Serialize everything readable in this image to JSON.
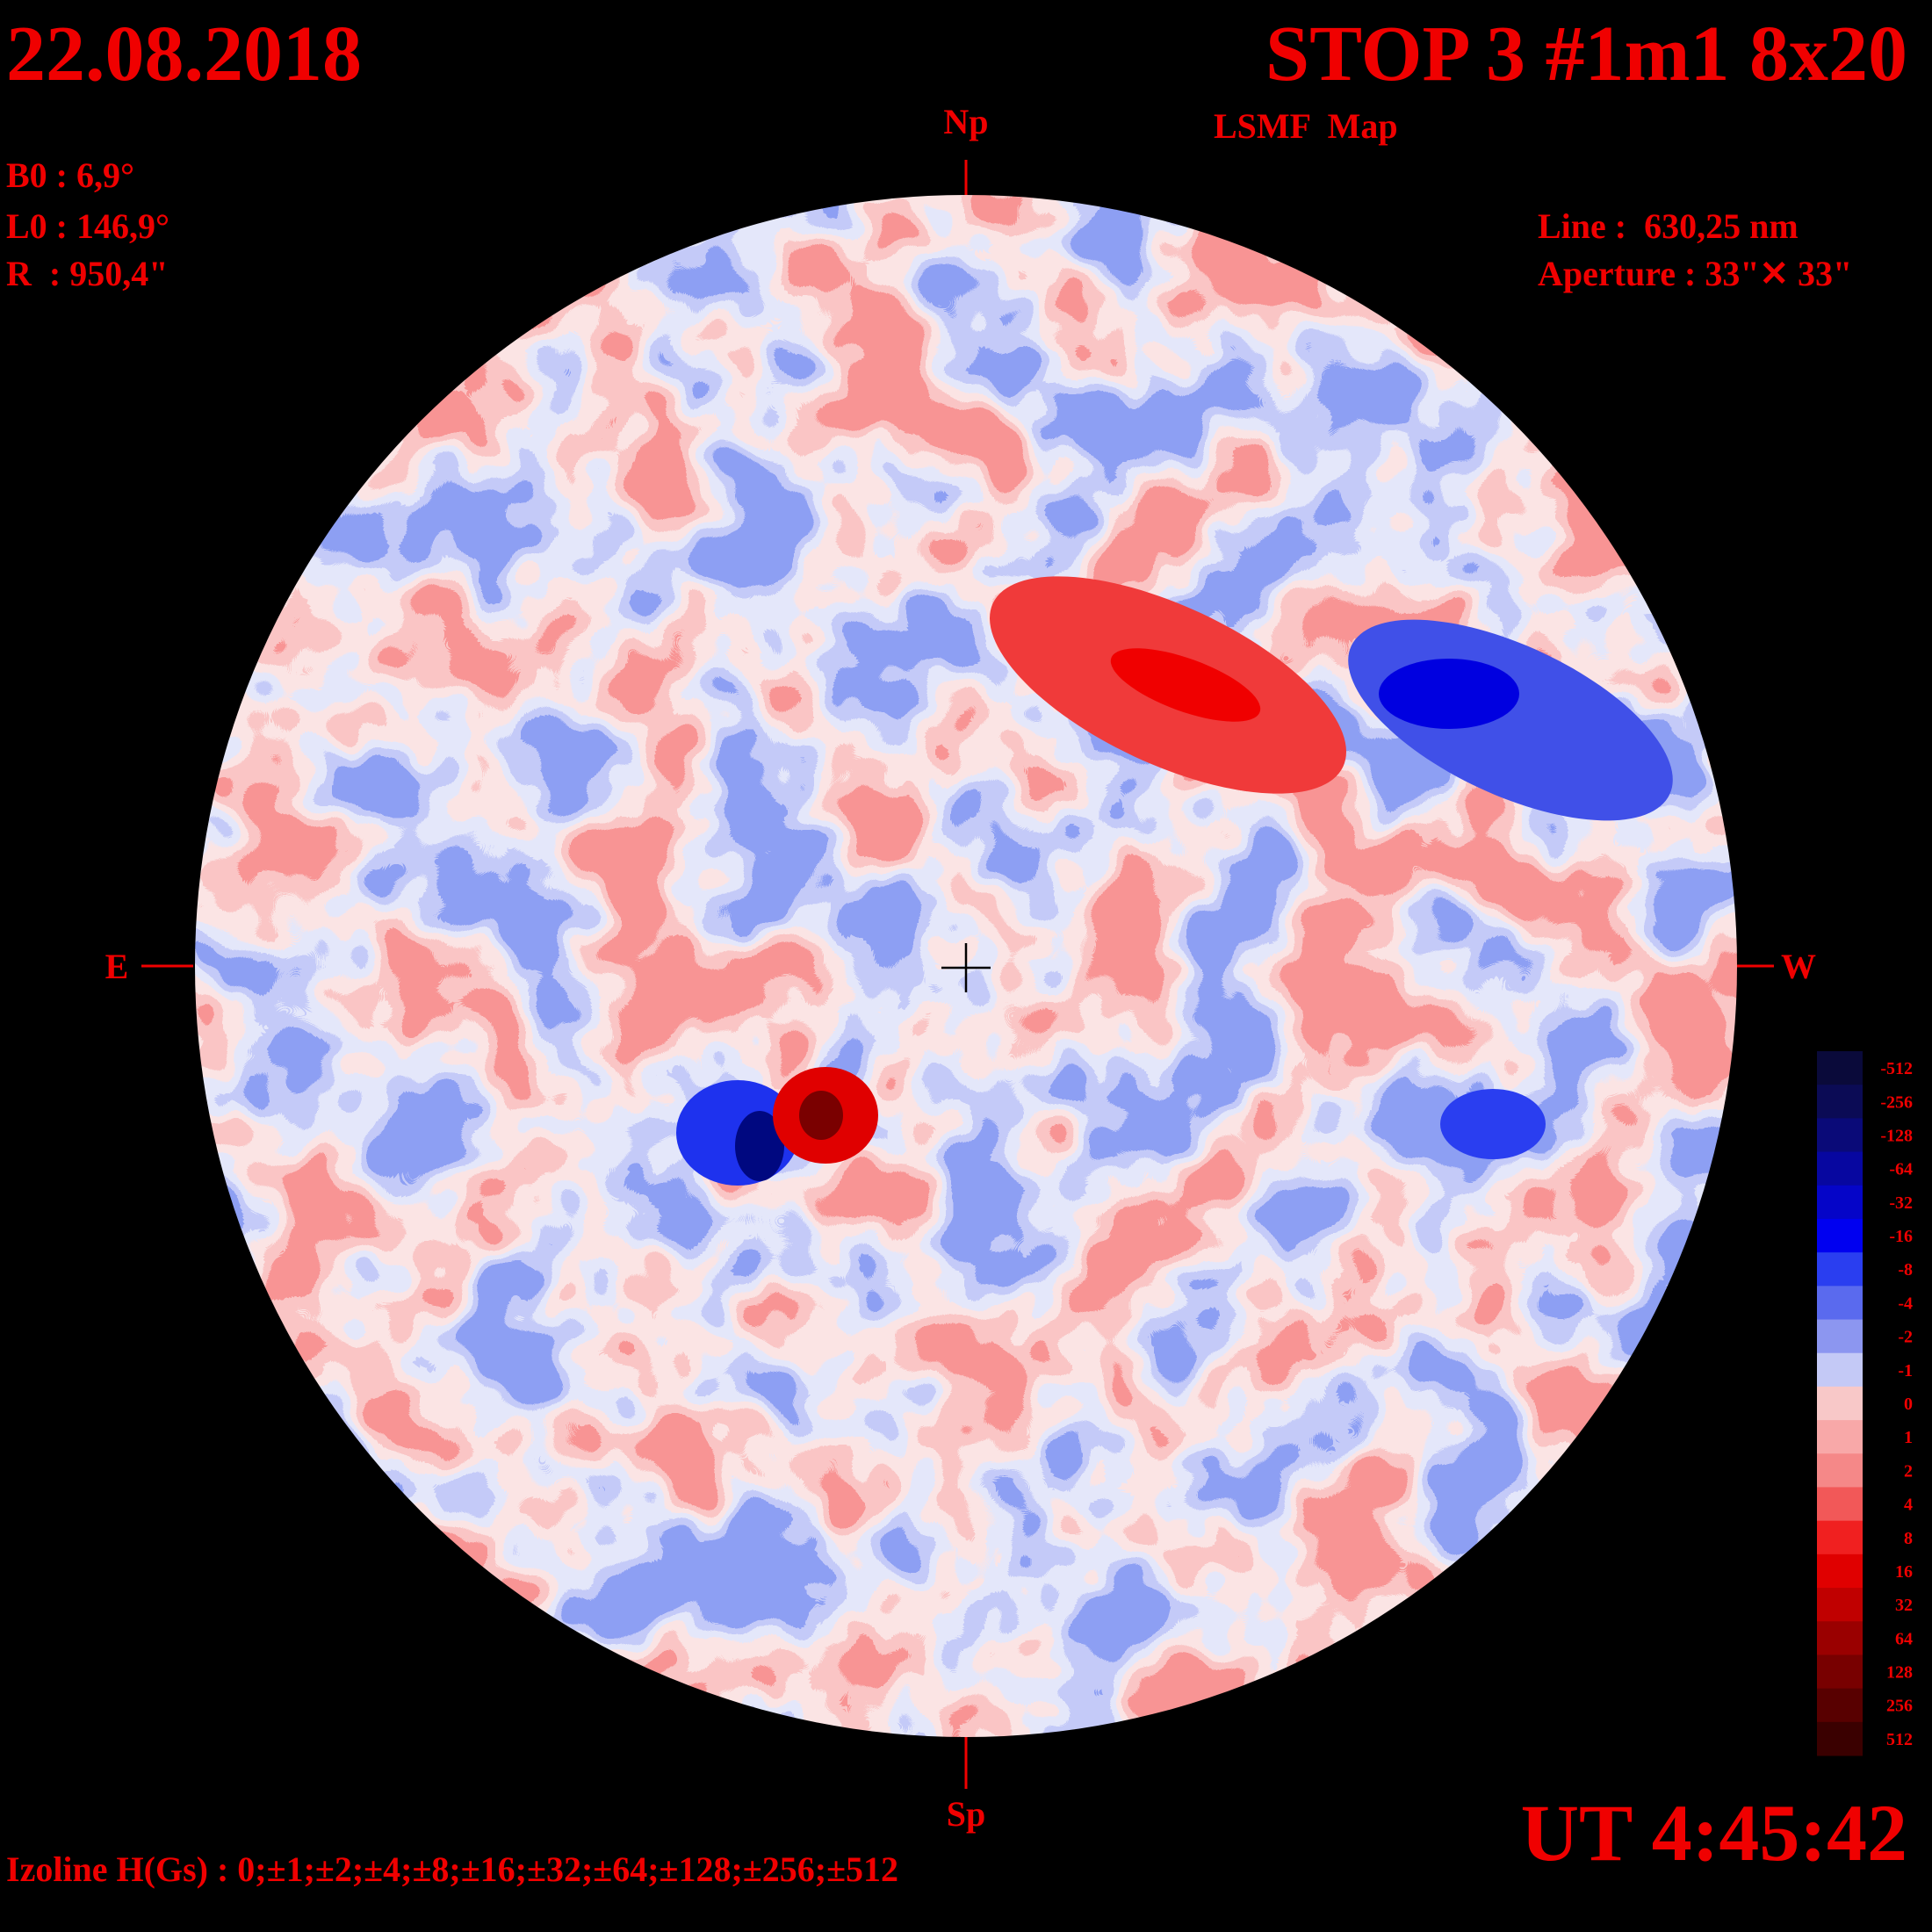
{
  "header": {
    "date": "22.08.2018",
    "title": "STOP 3 #1m1 8x20",
    "subtitle": "LSMF  Map",
    "params": [
      "B0 : 6,9°",
      "L0 : 146,9°",
      "R  : 950,4\""
    ],
    "line": "Line :  630,25 nm",
    "aperture": "Aperture : 33\"✕ 33\""
  },
  "compass": {
    "north": "Np",
    "south": "Sp",
    "east": "E",
    "west": "W"
  },
  "legend": [
    {
      "label": "-512",
      "color": "#0a0a3a"
    },
    {
      "label": "-256",
      "color": "#0b0b55"
    },
    {
      "label": "-128",
      "color": "#0a0a78"
    },
    {
      "label": "-64",
      "color": "#0707a0"
    },
    {
      "label": "-32",
      "color": "#0505c8"
    },
    {
      "label": "-16",
      "color": "#0000f0"
    },
    {
      "label": "-8",
      "color": "#2a3ef0"
    },
    {
      "label": "-4",
      "color": "#5a6aee"
    },
    {
      "label": "-2",
      "color": "#8c96f0"
    },
    {
      "label": "-1",
      "color": "#c4c9f6"
    },
    {
      "label": "0",
      "color": "#f8c8c8"
    },
    {
      "label": "1",
      "color": "#f8a8a8"
    },
    {
      "label": "2",
      "color": "#f58888"
    },
    {
      "label": "4",
      "color": "#f25858"
    },
    {
      "label": "8",
      "color": "#f02020"
    },
    {
      "label": "16",
      "color": "#e00000"
    },
    {
      "label": "32",
      "color": "#c00000"
    },
    {
      "label": "64",
      "color": "#9a0000"
    },
    {
      "label": "128",
      "color": "#780000"
    },
    {
      "label": "256",
      "color": "#580000"
    },
    {
      "label": "512",
      "color": "#3a0000"
    }
  ],
  "footer": {
    "isolines": "Izoline H(Gs) : 0;±1;±2;±4;±8;±16;±32;±64;±128;±256;±512",
    "time": "UT 4:45:42"
  }
}
